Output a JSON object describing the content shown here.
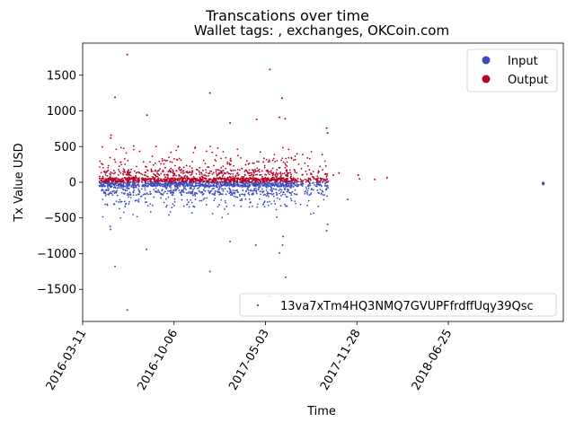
{
  "chart_data": {
    "type": "scatter",
    "title": "Transcations over time",
    "subtitle": "Wallet tags: , exchanges, OKCoin.com",
    "xlabel": "Time",
    "ylabel": "Tx Value USD",
    "xlim": [
      "2016-03-11",
      "2019-03-15"
    ],
    "ylim": [
      -1950,
      1950
    ],
    "x_ticks": [
      "2016-03-11",
      "2016-10-06",
      "2017-05-03",
      "2017-11-28",
      "2018-06-25"
    ],
    "y_ticks": [
      -1500,
      -1000,
      -500,
      0,
      500,
      1000,
      1500
    ],
    "y_tick_labels": [
      "−1500",
      "−1000",
      "−500",
      "0",
      "500",
      "1000",
      "1500"
    ],
    "grid": false,
    "legend": {
      "placement": "top-right",
      "entries": [
        {
          "label": "Input",
          "color": "#3b4cc0"
        },
        {
          "label": "Output",
          "color": "#b40426"
        }
      ]
    },
    "wallet_legend": {
      "placement": "lower-right",
      "label": "13va7xTm4HQ3NMQ7GVUPFfrdffUqy39Qsc",
      "color": "#1f77b4"
    },
    "series": [
      {
        "name": "Input",
        "color": "#3b4cc0",
        "points": [
          [
            "2016-05-13",
            -620
          ],
          [
            "2016-05-14",
            -660
          ],
          [
            "2016-05-24",
            -1180
          ],
          [
            "2016-06-21",
            -1790
          ],
          [
            "2016-08-04",
            -940
          ],
          [
            "2016-12-27",
            -1250
          ],
          [
            "2017-02-11",
            -830
          ],
          [
            "2017-04-11",
            -880
          ],
          [
            "2017-05-11",
            -1600
          ],
          [
            "2017-06-04",
            -990
          ],
          [
            "2017-06-11",
            -880
          ],
          [
            "2017-06-18",
            -1330
          ],
          [
            "2017-06-12",
            -760
          ],
          [
            "2017-09-20",
            -680
          ],
          [
            "2017-09-22",
            -590
          ],
          [
            "2017-11-07",
            -240
          ],
          [
            "2019-01-28",
            -12
          ],
          [
            "2019-01-28",
            -22
          ]
        ]
      },
      {
        "name": "Output",
        "color": "#b40426",
        "points": [
          [
            "2016-05-14",
            620
          ],
          [
            "2016-05-15",
            660
          ],
          [
            "2016-05-24",
            1190
          ],
          [
            "2016-06-21",
            1790
          ],
          [
            "2016-08-05",
            940
          ],
          [
            "2016-12-27",
            1250
          ],
          [
            "2017-02-11",
            830
          ],
          [
            "2017-04-13",
            880
          ],
          [
            "2017-05-13",
            1580
          ],
          [
            "2017-06-04",
            910
          ],
          [
            "2017-06-10",
            1180
          ],
          [
            "2017-06-17",
            890
          ],
          [
            "2017-09-20",
            760
          ],
          [
            "2017-09-22",
            690
          ],
          [
            "2017-10-05",
            100
          ],
          [
            "2017-10-18",
            130
          ],
          [
            "2017-12-01",
            100
          ],
          [
            "2017-12-04",
            45
          ],
          [
            "2018-01-08",
            40
          ],
          [
            "2018-02-05",
            65
          ]
        ]
      }
    ],
    "dense_cloud": {
      "x_range": [
        "2016-04-18",
        "2017-09-25"
      ],
      "input_value_range": [
        -500,
        0
      ],
      "output_value_range": [
        0,
        500
      ]
    }
  }
}
